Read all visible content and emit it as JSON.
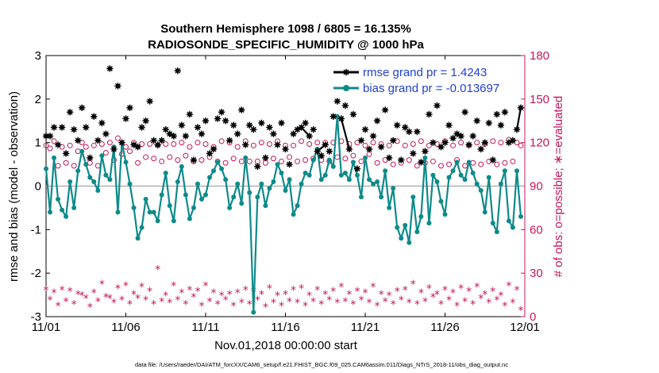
{
  "chart_data": {
    "type": "line",
    "title_line1": "Southern Hemisphere 1098 / 6805 = 16.135%",
    "title_line2": "RADIOSONDE_SPECIFIC_HUMIDITY @ 1000 hPa",
    "xlabel": "Nov.01,2018 00:00:00 start",
    "ylabel_left": "rmse and bias (model - observation)",
    "ylabel_right": "# of obs: o=possible; ∗=evaluated",
    "ylim_left": [
      -3,
      3
    ],
    "ylim_right": [
      0,
      180
    ],
    "yticks_left": [
      "-3",
      "-2",
      "-1",
      "0",
      "1",
      "2",
      "3"
    ],
    "yticks_right": [
      "0",
      "30",
      "60",
      "90",
      "120",
      "150",
      "180"
    ],
    "xlim_days": [
      0,
      30
    ],
    "xticks": [
      {
        "day": 0,
        "label": "11/01"
      },
      {
        "day": 5,
        "label": "11/06"
      },
      {
        "day": 10,
        "label": "11/11"
      },
      {
        "day": 15,
        "label": "11/16"
      },
      {
        "day": 20,
        "label": "11/21"
      },
      {
        "day": 25,
        "label": "11/26"
      },
      {
        "day": 30,
        "label": "12/01"
      }
    ],
    "legend": {
      "position": "top-right",
      "rmse_label": "rmse grand pr = 1.4243",
      "bias_label": "bias grand pr = -0.013697"
    },
    "colors": {
      "rmse": "#000000",
      "bias": "#0f8a8a",
      "obs": "#c2185b",
      "zero_line": "#b0b0b0"
    },
    "series": [
      {
        "name": "rmse",
        "x": [
          0.0,
          0.25,
          0.5,
          0.75,
          1.0,
          1.25,
          1.5,
          1.75,
          2.0,
          2.25,
          2.5,
          2.75,
          3.0,
          3.25,
          3.5,
          3.75,
          4.0,
          4.25,
          4.5,
          4.75,
          5.0,
          5.25,
          5.5,
          5.75,
          6.0,
          6.25,
          6.5,
          6.75,
          7.0,
          7.25,
          7.5,
          7.75,
          8.0,
          8.25,
          8.5,
          8.75,
          9.0,
          9.25,
          9.5,
          9.75,
          10.0,
          10.25,
          10.5,
          10.75,
          11.0,
          11.25,
          11.5,
          11.75,
          12.0,
          12.25,
          12.5,
          12.75,
          13.0,
          13.25,
          13.5,
          13.75,
          14.0,
          14.25,
          14.5,
          14.75,
          15.0,
          15.25,
          15.5,
          15.75,
          16.0,
          16.25,
          16.5,
          16.75,
          17.0,
          17.25,
          17.5,
          17.75,
          18.0,
          18.25,
          18.5,
          18.75,
          19.0,
          19.25,
          19.5,
          19.75,
          20.0,
          20.25,
          20.5,
          20.75,
          21.0,
          21.25,
          21.5,
          21.75,
          22.0,
          22.25,
          22.5,
          22.75,
          23.0,
          23.25,
          23.5,
          23.75,
          24.0,
          24.25,
          24.5,
          24.75,
          25.0,
          25.25,
          25.5,
          25.75,
          26.0,
          26.25,
          26.5,
          26.75,
          27.0,
          27.25,
          27.5,
          27.75,
          28.0,
          28.25,
          28.5,
          28.75,
          29.0,
          29.25,
          29.5,
          29.75
        ],
        "values": [
          1.15,
          1.15,
          1.35,
          0.95,
          1.35,
          0.75,
          1.7,
          1.3,
          1.05,
          1.8,
          1.35,
          0.65,
          1.6,
          1.05,
          1.45,
          1.2,
          2.7,
          0.85,
          2.3,
          1.0,
          1.55,
          1.8,
          0.95,
          0.9,
          1.35,
          1.5,
          1.95,
          1.05,
          0.95,
          1.05,
          1.3,
          1.2,
          1.15,
          2.65,
          1.4,
          1.15,
          1.65,
          0.6,
          1.35,
          1.2,
          1.5,
          0.75,
          0.85,
          1.55,
          1.7,
          1.5,
          1.05,
          1.4,
          1.2,
          1.75,
          0.95,
          1.4,
          1.3,
          0.45,
          1.45,
          0.65,
          1.35,
          1.2,
          0.95,
          1.45,
          0.85,
          0.5,
          1.2,
          1.3,
          1.35,
          1.45,
          1.15,
          1.3,
          0.8,
          0.7,
          0.95,
          0.8,
          1.6,
          1.95,
          1.55,
          1.85,
          0.85,
          1.65,
          0.4,
          1.05,
          1.3,
          0.85,
          1.15,
          1.5,
          0.9,
          1.75,
          0.65,
          1.05,
          1.4,
          0.6,
          1.35,
          1.25,
          0.75,
          1.25,
          0.55,
          0.8,
          1.65,
          1.0,
          1.85,
          0.9,
          1.0,
          1.4,
          1.1,
          1.2,
          1.15,
          1.7,
          0.95,
          1.15,
          1.5,
          0.85,
          1.0,
          1.45,
          0.6,
          1.65,
          1.4,
          1.7,
          1.0,
          1.05,
          1.3,
          1.8
        ],
        "connected_segments": [
          [
            16.0,
            16.5
          ],
          [
            17.0,
            17.5
          ],
          [
            18.5,
            19.0
          ],
          [
            29.5,
            29.75
          ]
        ]
      },
      {
        "name": "bias",
        "x": [
          0.0,
          0.25,
          0.5,
          0.75,
          1.0,
          1.25,
          1.5,
          1.75,
          2.0,
          2.25,
          2.5,
          2.75,
          3.0,
          3.25,
          3.5,
          3.75,
          4.0,
          4.25,
          4.5,
          4.75,
          5.0,
          5.25,
          5.5,
          5.75,
          6.0,
          6.25,
          6.5,
          6.75,
          7.0,
          7.25,
          7.5,
          7.75,
          8.0,
          8.25,
          8.5,
          8.75,
          9.0,
          9.25,
          9.5,
          9.75,
          10.0,
          10.25,
          10.5,
          10.75,
          11.0,
          11.25,
          11.5,
          11.75,
          12.0,
          12.25,
          12.5,
          12.75,
          13.0,
          13.25,
          13.5,
          13.75,
          14.0,
          14.25,
          14.5,
          14.75,
          15.0,
          15.25,
          15.5,
          15.75,
          16.0,
          16.25,
          16.5,
          16.75,
          17.0,
          17.25,
          17.5,
          17.75,
          18.0,
          18.25,
          18.5,
          18.75,
          19.0,
          19.25,
          19.5,
          19.75,
          20.0,
          20.25,
          20.5,
          20.75,
          21.0,
          21.25,
          21.5,
          21.75,
          22.0,
          22.25,
          22.5,
          22.75,
          23.0,
          23.25,
          23.5,
          23.75,
          24.0,
          24.25,
          24.5,
          24.75,
          25.0,
          25.25,
          25.5,
          25.75,
          26.0,
          26.25,
          26.5,
          26.75,
          27.0,
          27.25,
          27.5,
          27.75,
          28.0,
          28.25,
          28.5,
          28.75,
          29.0,
          29.25,
          29.5,
          29.75
        ],
        "values": [
          0.4,
          -0.6,
          0.65,
          -0.3,
          -0.55,
          -0.7,
          0.1,
          -0.5,
          0.35,
          0.8,
          0.5,
          0.2,
          0.1,
          -0.1,
          0.7,
          0.25,
          0.15,
          0.9,
          -0.6,
          1.0,
          0.55,
          0.05,
          -0.5,
          -1.2,
          -0.95,
          -0.3,
          -0.6,
          -0.6,
          -0.8,
          -0.2,
          0.3,
          -0.45,
          -0.8,
          0.1,
          0.45,
          -0.2,
          -0.75,
          -0.5,
          0.05,
          -0.3,
          -0.2,
          0.2,
          0.35,
          0.55,
          0.4,
          0.15,
          -0.5,
          -0.25,
          0.05,
          -0.4,
          0.65,
          -0.15,
          -2.9,
          -0.25,
          0.05,
          -0.45,
          -0.05,
          0.1,
          0.5,
          0.3,
          -0.1,
          0.15,
          -0.65,
          -0.45,
          0.05,
          0.3,
          0.25,
          0.6,
          0.85,
          0.15,
          0.25,
          0.6,
          0.45,
          1.6,
          0.25,
          0.3,
          0.15,
          0.55,
          0.25,
          -0.25,
          0.65,
          0.15,
          0.05,
          0.1,
          -0.25,
          0.35,
          -0.5,
          -0.05,
          -0.95,
          -1.2,
          -0.9,
          -1.3,
          -0.25,
          -1.05,
          -0.7,
          0.65,
          -0.85,
          0.25,
          0.1,
          -0.35,
          -0.65,
          0.2,
          0.35,
          0.55,
          0.25,
          0.15,
          0.55,
          0.3,
          0.05,
          -0.1,
          -0.6,
          0.2,
          -0.85,
          -1.05,
          0.05,
          0.35,
          -0.8,
          -0.95,
          0.35,
          -0.7
        ]
      },
      {
        "name": "obs_possible",
        "x": [
          0.0,
          0.25,
          0.5,
          0.75,
          1.0,
          1.25,
          1.5,
          1.75,
          2.0,
          2.25,
          2.5,
          2.75,
          3.0,
          3.25,
          3.5,
          3.75,
          4.0,
          4.25,
          4.5,
          4.75,
          5.0,
          5.25,
          5.5,
          5.75,
          6.0,
          6.25,
          6.5,
          6.75,
          7.0,
          7.25,
          7.5,
          7.75,
          8.0,
          8.25,
          8.5,
          8.75,
          9.0,
          9.25,
          9.5,
          9.75,
          10.0,
          10.25,
          10.5,
          10.75,
          11.0,
          11.25,
          11.5,
          11.75,
          12.0,
          12.25,
          12.5,
          12.75,
          13.0,
          13.25,
          13.5,
          13.75,
          14.0,
          14.25,
          14.5,
          14.75,
          15.0,
          15.25,
          15.5,
          15.75,
          16.0,
          16.25,
          16.5,
          16.75,
          17.0,
          17.25,
          17.5,
          17.75,
          18.0,
          18.25,
          18.5,
          18.75,
          19.0,
          19.25,
          19.5,
          19.75,
          20.0,
          20.25,
          20.5,
          20.75,
          21.0,
          21.25,
          21.5,
          21.75,
          22.0,
          22.25,
          22.5,
          22.75,
          23.0,
          23.25,
          23.5,
          23.75,
          24.0,
          24.25,
          24.5,
          24.75,
          25.0,
          25.25,
          25.5,
          25.75,
          26.0,
          26.25,
          26.5,
          26.75,
          27.0,
          27.25,
          27.5,
          27.75,
          28.0,
          28.25,
          28.5,
          28.75,
          29.0,
          29.25,
          29.5,
          29.75
        ],
        "values": [
          118,
          116,
          121,
          104,
          117,
          106,
          118,
          104,
          114,
          120,
          117,
          106,
          118,
          104,
          119,
          113,
          120,
          108,
          123,
          112,
          117,
          114,
          120,
          106,
          119,
          110,
          119,
          109,
          118,
          107,
          119,
          110,
          119,
          108,
          120,
          111,
          117,
          107,
          120,
          108,
          119,
          110,
          117,
          107,
          121,
          106,
          120,
          109,
          117,
          107,
          121,
          107,
          118,
          107,
          120,
          106,
          119,
          109,
          121,
          107,
          118,
          110,
          118,
          107,
          121,
          108,
          119,
          109,
          120,
          108,
          120,
          107,
          120,
          110,
          121,
          109,
          119,
          111,
          120,
          107,
          118,
          112,
          120,
          106,
          119,
          108,
          118,
          105,
          121,
          106,
          118,
          108,
          119,
          104,
          121,
          106,
          118,
          107,
          119,
          104,
          121,
          105,
          118,
          108,
          120,
          104,
          118,
          106,
          120,
          105,
          119,
          107,
          121,
          105,
          120,
          106,
          122,
          107,
          120,
          118
        ]
      },
      {
        "name": "obs_evaluated",
        "x": [
          0.0,
          0.25,
          0.5,
          0.75,
          1.0,
          1.25,
          1.5,
          1.75,
          2.0,
          2.25,
          2.5,
          2.75,
          3.0,
          3.25,
          3.5,
          3.75,
          4.0,
          4.25,
          4.5,
          4.75,
          5.0,
          5.25,
          5.5,
          5.75,
          6.0,
          6.25,
          6.5,
          6.75,
          7.0,
          7.25,
          7.5,
          7.75,
          8.0,
          8.25,
          8.5,
          8.75,
          9.0,
          9.25,
          9.5,
          9.75,
          10.0,
          10.25,
          10.5,
          10.75,
          11.0,
          11.25,
          11.5,
          11.75,
          12.0,
          12.25,
          12.5,
          12.75,
          13.0,
          13.25,
          13.5,
          13.75,
          14.0,
          14.25,
          14.5,
          14.75,
          15.0,
          15.25,
          15.5,
          15.75,
          16.0,
          16.25,
          16.5,
          16.75,
          17.0,
          17.25,
          17.5,
          17.75,
          18.0,
          18.25,
          18.5,
          18.75,
          19.0,
          19.25,
          19.5,
          19.75,
          20.0,
          20.25,
          20.5,
          20.75,
          21.0,
          21.25,
          21.5,
          21.75,
          22.0,
          22.25,
          22.5,
          22.75,
          23.0,
          23.25,
          23.5,
          23.75,
          24.0,
          24.25,
          24.5,
          24.75,
          25.0,
          25.25,
          25.5,
          25.75,
          26.0,
          26.25,
          26.5,
          26.75,
          27.0,
          27.25,
          27.5,
          27.75,
          28.0,
          28.25,
          28.5,
          28.75,
          29.0,
          29.25,
          29.5,
          29.75
        ],
        "values": [
          19,
          12,
          17,
          8,
          19,
          11,
          18,
          9,
          16,
          15,
          13,
          7,
          17,
          11,
          23,
          14,
          13,
          10,
          20,
          12,
          22,
          9,
          16,
          13,
          21,
          12,
          18,
          9,
          33,
          11,
          15,
          10,
          22,
          12,
          17,
          9,
          19,
          14,
          18,
          8,
          22,
          11,
          17,
          9,
          15,
          12,
          16,
          8,
          17,
          10,
          19,
          9,
          18,
          12,
          16,
          7,
          20,
          10,
          15,
          8,
          16,
          11,
          19,
          10,
          20,
          8,
          15,
          11,
          19,
          9,
          16,
          12,
          18,
          10,
          21,
          11,
          16,
          9,
          18,
          12,
          17,
          10,
          21,
          8,
          16,
          11,
          15,
          9,
          18,
          12,
          19,
          10,
          23,
          9,
          17,
          11,
          20,
          14,
          16,
          9,
          19,
          12,
          17,
          8,
          20,
          11,
          18,
          9,
          21,
          13,
          16,
          10,
          18,
          12,
          15,
          8,
          22,
          10,
          19,
          5
        ]
      }
    ],
    "footer": "data file: /Users/raeder/DAI/ATM_forcXX/CAM6_setup/f.e21.FHIST_BGC.f09_025.CAM6assim.011/Diags_NTrS_2018-11/obs_diag_output.nc"
  }
}
